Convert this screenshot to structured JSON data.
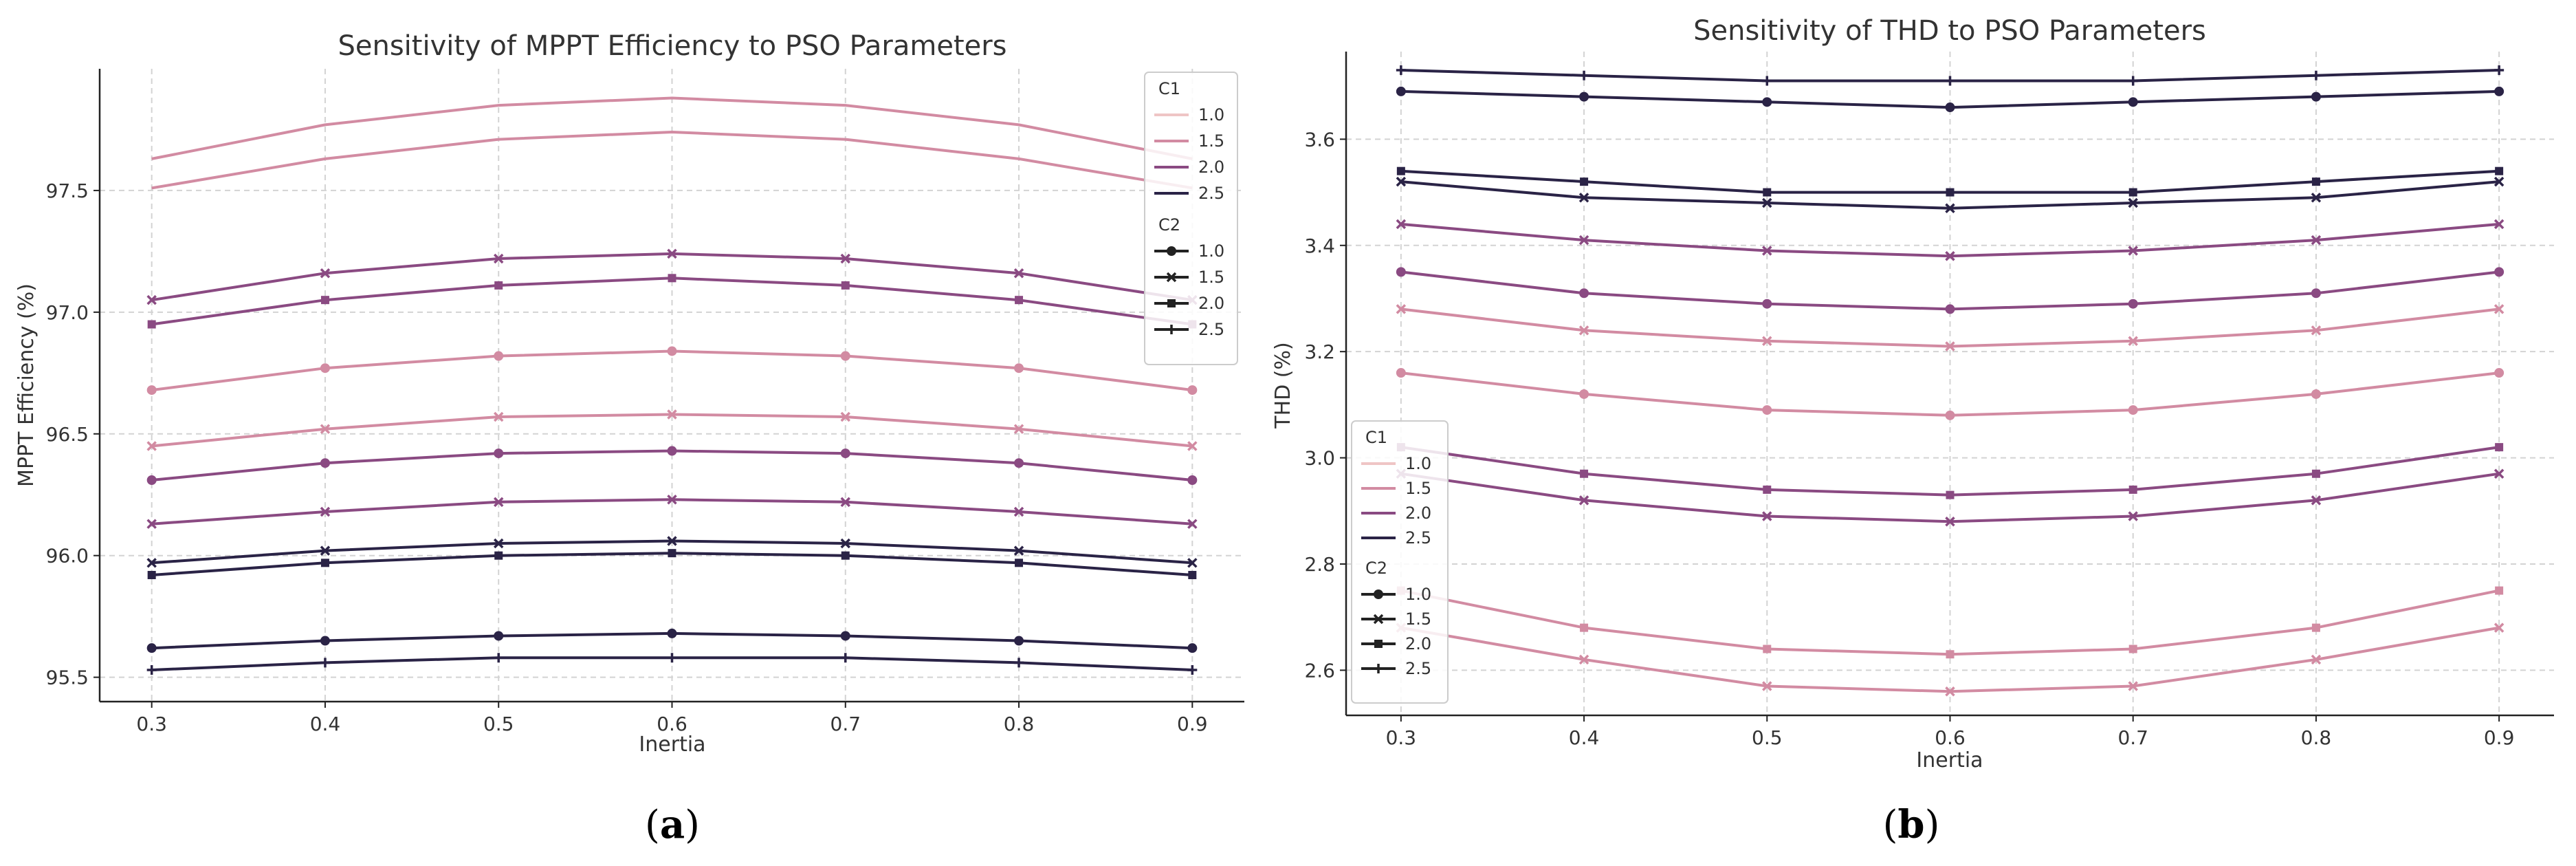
{
  "colors": {
    "c1_1.0": "#efc5c5",
    "c1_1.5": "#d28ba2",
    "c1_2.0": "#8a4a82",
    "c1_2.5": "#2a2346"
  },
  "legend": {
    "c1_title": "C1",
    "c1_items": [
      "1.0",
      "1.5",
      "2.0",
      "2.5"
    ],
    "c2_title": "C2",
    "c2_items": [
      "1.0",
      "1.5",
      "2.0",
      "2.5"
    ],
    "c2_markers": [
      "circle-icon",
      "x-icon",
      "square-icon",
      "plus-icon"
    ]
  },
  "panel_labels": [
    "(a)",
    "(b)"
  ],
  "chart_data": [
    {
      "type": "line",
      "title": "Sensitivity of MPPT Efficiency to PSO Parameters",
      "xlabel": "Inertia",
      "ylabel": "MPPT Efficiency (%)",
      "xlim": [
        0.27,
        0.93
      ],
      "ylim": [
        95.4,
        98.0
      ],
      "xticks": [
        0.3,
        0.4,
        0.5,
        0.6,
        0.7,
        0.8,
        0.9
      ],
      "xtick_labels": [
        "0.3",
        "0.4",
        "0.5",
        "0.6",
        "0.7",
        "0.8",
        "0.9"
      ],
      "yticks": [
        95.5,
        96.0,
        96.5,
        97.0,
        97.5
      ],
      "ytick_labels": [
        "95.5",
        "96.0",
        "96.5",
        "97.0",
        "97.5"
      ],
      "x": [
        0.3,
        0.4,
        0.5,
        0.6,
        0.7,
        0.8,
        0.9
      ],
      "series": [
        {
          "c1": "1.5",
          "c2": "1.0",
          "marker": "none",
          "values": [
            97.63,
            97.77,
            97.85,
            97.88,
            97.85,
            97.77,
            97.63
          ]
        },
        {
          "c1": "1.5",
          "c2": "1.0",
          "marker": "none",
          "values": [
            97.51,
            97.63,
            97.71,
            97.74,
            97.71,
            97.63,
            97.51
          ]
        },
        {
          "c1": "2.0",
          "c2": "1.5",
          "marker": "x",
          "values": [
            97.05,
            97.16,
            97.22,
            97.24,
            97.22,
            97.16,
            97.05
          ]
        },
        {
          "c1": "2.0",
          "c2": "2.0",
          "marker": "square",
          "values": [
            96.95,
            97.05,
            97.11,
            97.14,
            97.11,
            97.05,
            96.95
          ]
        },
        {
          "c1": "1.5",
          "c2": "1.0",
          "marker": "circle",
          "values": [
            96.68,
            96.77,
            96.82,
            96.84,
            96.82,
            96.77,
            96.68
          ]
        },
        {
          "c1": "1.5",
          "c2": "1.5",
          "marker": "x",
          "values": [
            96.45,
            96.52,
            96.57,
            96.58,
            96.57,
            96.52,
            96.45
          ]
        },
        {
          "c1": "2.0",
          "c2": "1.0",
          "marker": "circle",
          "values": [
            96.31,
            96.38,
            96.42,
            96.43,
            96.42,
            96.38,
            96.31
          ]
        },
        {
          "c1": "2.0",
          "c2": "1.5",
          "marker": "x",
          "values": [
            96.13,
            96.18,
            96.22,
            96.23,
            96.22,
            96.18,
            96.13
          ]
        },
        {
          "c1": "2.5",
          "c2": "1.5",
          "marker": "x",
          "values": [
            95.97,
            96.02,
            96.05,
            96.06,
            96.05,
            96.02,
            95.97
          ]
        },
        {
          "c1": "2.5",
          "c2": "2.0",
          "marker": "square",
          "values": [
            95.92,
            95.97,
            96.0,
            96.01,
            96.0,
            95.97,
            95.92
          ]
        },
        {
          "c1": "2.5",
          "c2": "1.0",
          "marker": "circle",
          "values": [
            95.62,
            95.65,
            95.67,
            95.68,
            95.67,
            95.65,
            95.62
          ]
        },
        {
          "c1": "2.5",
          "c2": "2.5",
          "marker": "plus",
          "values": [
            95.53,
            95.56,
            95.58,
            95.58,
            95.58,
            95.56,
            95.53
          ]
        }
      ],
      "legend_position": "upper-right"
    },
    {
      "type": "line",
      "title": "Sensitivity of THD to PSO Parameters",
      "xlabel": "Inertia",
      "ylabel": "THD (%)",
      "xlim": [
        0.27,
        0.93
      ],
      "ylim": [
        2.515,
        3.765
      ],
      "xticks": [
        0.3,
        0.4,
        0.5,
        0.6,
        0.7,
        0.8,
        0.9
      ],
      "xtick_labels": [
        "0.3",
        "0.4",
        "0.5",
        "0.6",
        "0.7",
        "0.8",
        "0.9"
      ],
      "yticks": [
        2.6,
        2.8,
        3.0,
        3.2,
        3.4,
        3.6
      ],
      "ytick_labels": [
        "2.6",
        "2.8",
        "3.0",
        "3.2",
        "3.4",
        "3.6"
      ],
      "x": [
        0.3,
        0.4,
        0.5,
        0.6,
        0.7,
        0.8,
        0.9
      ],
      "series": [
        {
          "c1": "2.5",
          "c2": "2.5",
          "marker": "plus",
          "values": [
            3.73,
            3.72,
            3.71,
            3.71,
            3.71,
            3.72,
            3.73
          ]
        },
        {
          "c1": "2.5",
          "c2": "1.0",
          "marker": "circle",
          "values": [
            3.69,
            3.68,
            3.67,
            3.66,
            3.67,
            3.68,
            3.69
          ]
        },
        {
          "c1": "2.5",
          "c2": "2.0",
          "marker": "square",
          "values": [
            3.54,
            3.52,
            3.5,
            3.5,
            3.5,
            3.52,
            3.54
          ]
        },
        {
          "c1": "2.5",
          "c2": "1.5",
          "marker": "x",
          "values": [
            3.52,
            3.49,
            3.48,
            3.47,
            3.48,
            3.49,
            3.52
          ]
        },
        {
          "c1": "2.0",
          "c2": "1.5",
          "marker": "x",
          "values": [
            3.44,
            3.41,
            3.39,
            3.38,
            3.39,
            3.41,
            3.44
          ]
        },
        {
          "c1": "2.0",
          "c2": "1.0",
          "marker": "circle",
          "values": [
            3.35,
            3.31,
            3.29,
            3.28,
            3.29,
            3.31,
            3.35
          ]
        },
        {
          "c1": "1.5",
          "c2": "1.5",
          "marker": "x",
          "values": [
            3.28,
            3.24,
            3.22,
            3.21,
            3.22,
            3.24,
            3.28
          ]
        },
        {
          "c1": "1.5",
          "c2": "1.0",
          "marker": "circle",
          "values": [
            3.16,
            3.12,
            3.09,
            3.08,
            3.09,
            3.12,
            3.16
          ]
        },
        {
          "c1": "2.0",
          "c2": "2.0",
          "marker": "square",
          "values": [
            3.02,
            2.97,
            2.94,
            2.93,
            2.94,
            2.97,
            3.02
          ]
        },
        {
          "c1": "2.0",
          "c2": "1.5",
          "marker": "x",
          "values": [
            2.97,
            2.92,
            2.89,
            2.88,
            2.89,
            2.92,
            2.97
          ]
        },
        {
          "c1": "1.5",
          "c2": "2.0",
          "marker": "square",
          "values": [
            2.75,
            2.68,
            2.64,
            2.63,
            2.64,
            2.68,
            2.75
          ]
        },
        {
          "c1": "1.5",
          "c2": "1.5",
          "marker": "x",
          "values": [
            2.68,
            2.62,
            2.57,
            2.56,
            2.57,
            2.62,
            2.68
          ]
        }
      ],
      "legend_position": "lower-left"
    }
  ]
}
